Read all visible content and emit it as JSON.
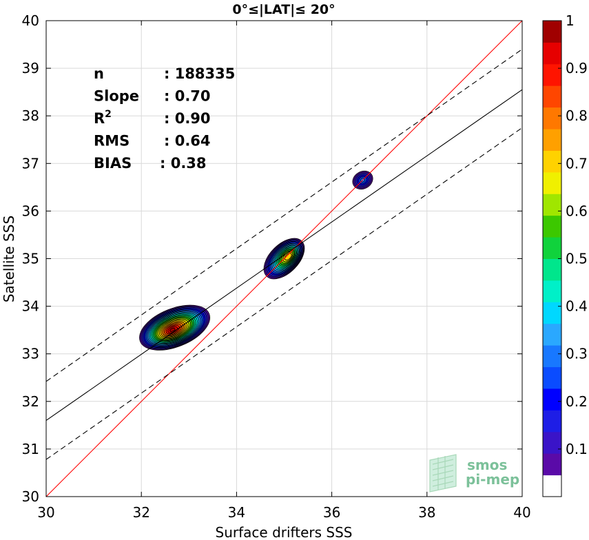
{
  "chart_data": {
    "type": "heatmap",
    "title": "0°≤|LAT|≤ 20°",
    "xlabel": "Surface drifters SSS",
    "ylabel": "Satellite SSS",
    "xlim": [
      30,
      40
    ],
    "ylim": [
      30,
      40
    ],
    "xticks": [
      "30",
      "32",
      "34",
      "36",
      "38",
      "40"
    ],
    "yticks": [
      "30",
      "31",
      "32",
      "33",
      "34",
      "35",
      "36",
      "37",
      "38",
      "39",
      "40"
    ],
    "grid": true,
    "stats": [
      {
        "label": "n",
        "value": ": 188335"
      },
      {
        "label": "Slope",
        "value": ": 0.70"
      },
      {
        "label": "R",
        "sup": "2",
        "value": ": 0.90"
      },
      {
        "label": "RMS",
        "value": ": 0.64"
      },
      {
        "label": "BIAS",
        "value": ": 0.38"
      }
    ],
    "lines": {
      "identity": {
        "x": [
          30,
          40
        ],
        "y": [
          30,
          40
        ],
        "color": "#ff0000"
      },
      "fit": {
        "x": [
          30,
          40
        ],
        "y": [
          31.6,
          38.55
        ],
        "color": "#000000"
      },
      "fit_upper": {
        "x": [
          30,
          40
        ],
        "y": [
          32.42,
          39.4
        ],
        "color": "#000000",
        "style": "dashed"
      },
      "fit_lower": {
        "x": [
          30,
          40
        ],
        "y": [
          30.78,
          37.75
        ],
        "color": "#000000",
        "style": "dashed"
      }
    },
    "density_clusters": [
      {
        "x": 32.65,
        "y": 33.5,
        "peak": 1.0
      },
      {
        "x": 35.1,
        "y": 35.05,
        "peak": 0.75
      },
      {
        "x": 36.65,
        "y": 36.65,
        "peak": 0.3
      }
    ],
    "colorbar": {
      "range": [
        0,
        1
      ],
      "ticks": [
        "0.1",
        "0.2",
        "0.3",
        "0.4",
        "0.5",
        "0.6",
        "0.7",
        "0.8",
        "0.9",
        "1"
      ],
      "colors": [
        "#ffffff",
        "#5a0aa8",
        "#3a14c8",
        "#1e1ee6",
        "#0000ff",
        "#0a4cff",
        "#1878ff",
        "#2aa8ff",
        "#00d8ff",
        "#00f0c8",
        "#00e68c",
        "#10d23c",
        "#3cc800",
        "#a0e600",
        "#f0f000",
        "#ffd200",
        "#ffa000",
        "#ff7800",
        "#ff4600",
        "#ff1400",
        "#e60000",
        "#a00000"
      ]
    },
    "logo": "smos pi-mep"
  }
}
